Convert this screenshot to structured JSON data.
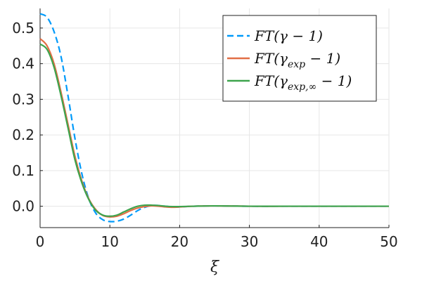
{
  "chart_data": {
    "type": "line",
    "title": "",
    "xlabel": "ξ",
    "ylabel": "",
    "xlim": [
      0,
      50
    ],
    "ylim": [
      -0.06,
      0.555
    ],
    "grid": true,
    "legend_placement": "top-right",
    "x_ticks": [
      0,
      10,
      20,
      30,
      40,
      50
    ],
    "x_tick_labels": [
      "0",
      "10",
      "20",
      "30",
      "40",
      "50"
    ],
    "y_ticks": [
      0.0,
      0.1,
      0.2,
      0.3,
      0.4,
      0.5
    ],
    "y_tick_labels": [
      "0.0",
      "0.1",
      "0.2",
      "0.3",
      "0.4",
      "0.5"
    ],
    "series": [
      {
        "name": "FT(γ − 1)",
        "color": "#009AFA",
        "style": "dashed",
        "x": [
          0,
          1,
          2,
          3,
          4,
          5,
          6,
          7,
          8,
          9,
          10,
          11,
          12,
          13,
          14,
          15,
          16,
          17,
          18,
          19,
          20,
          22,
          25,
          30,
          35,
          40,
          45,
          50
        ],
        "y": [
          0.54,
          0.53,
          0.49,
          0.42,
          0.31,
          0.19,
          0.09,
          0.02,
          -0.02,
          -0.038,
          -0.043,
          -0.042,
          -0.036,
          -0.025,
          -0.012,
          -0.003,
          0.002,
          0.002,
          0.0,
          -0.002,
          -0.002,
          0.0,
          0.001,
          0.0,
          0.0,
          0.0,
          0.0,
          0.0
        ]
      },
      {
        "name": "FT(γexp − 1)",
        "color": "#E26F46",
        "style": "solid",
        "x": [
          0,
          1,
          2,
          3,
          4,
          5,
          6,
          7,
          8,
          9,
          10,
          11,
          12,
          13,
          14,
          15,
          16,
          17,
          18,
          19,
          20,
          22,
          25,
          30,
          35,
          40,
          45,
          50
        ],
        "y": [
          0.47,
          0.45,
          0.4,
          0.32,
          0.23,
          0.14,
          0.07,
          0.02,
          -0.01,
          -0.026,
          -0.03,
          -0.028,
          -0.021,
          -0.012,
          -0.005,
          -0.001,
          0.001,
          0.0,
          -0.002,
          -0.003,
          -0.002,
          0.0,
          0.001,
          0.0,
          0.0,
          0.0,
          0.0,
          0.0
        ]
      },
      {
        "name": "FT(γexp,∞ − 1)",
        "color": "#3DA44D",
        "style": "solid",
        "x": [
          0,
          1,
          2,
          3,
          4,
          5,
          6,
          7,
          8,
          9,
          10,
          11,
          12,
          13,
          14,
          15,
          16,
          17,
          18,
          19,
          20,
          22,
          25,
          30,
          35,
          40,
          45,
          50
        ],
        "y": [
          0.455,
          0.44,
          0.39,
          0.31,
          0.22,
          0.13,
          0.065,
          0.018,
          -0.012,
          -0.025,
          -0.028,
          -0.025,
          -0.016,
          -0.007,
          0.0,
          0.003,
          0.003,
          0.002,
          0.0,
          -0.001,
          -0.001,
          0.0,
          0.001,
          0.0,
          0.0,
          0.0,
          0.0,
          0.0
        ]
      }
    ]
  }
}
